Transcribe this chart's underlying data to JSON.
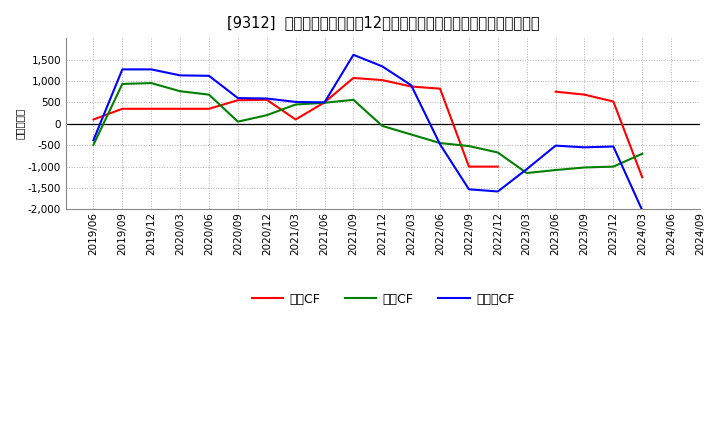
{
  "title": "[9312]  キャッシュフローの12か月移動合計の対前年同期増減額の推移",
  "ylabel": "（百万円）",
  "background_color": "#ffffff",
  "plot_bg_color": "#ffffff",
  "grid_color": "#aaaaaa",
  "x_labels": [
    "2019/06",
    "2019/09",
    "2019/12",
    "2020/03",
    "2020/06",
    "2020/09",
    "2020/12",
    "2021/03",
    "2021/06",
    "2021/09",
    "2021/12",
    "2022/03",
    "2022/06",
    "2022/09",
    "2022/12",
    "2023/03",
    "2023/06",
    "2023/09",
    "2023/12",
    "2024/03",
    "2024/06",
    "2024/09"
  ],
  "operating_cf": [
    100,
    350,
    350,
    350,
    350,
    550,
    560,
    100,
    500,
    1070,
    1020,
    870,
    820,
    -1000,
    -1000,
    null,
    750,
    680,
    520,
    -1250,
    null,
    null
  ],
  "investing_cf": [
    -490,
    930,
    950,
    760,
    680,
    50,
    200,
    450,
    490,
    560,
    -50,
    -250,
    -450,
    -520,
    -670,
    -1150,
    -1080,
    -1020,
    -1000,
    -700,
    null,
    null
  ],
  "free_cf": [
    -380,
    1270,
    1270,
    1130,
    1120,
    600,
    590,
    510,
    500,
    1610,
    1340,
    900,
    -480,
    -1530,
    -1580,
    -1060,
    -510,
    -550,
    -530,
    -2020,
    null,
    null
  ],
  "operating_color": "#ff0000",
  "investing_color": "#008000",
  "free_color": "#0000ff",
  "ylim": [
    -2000,
    2000
  ],
  "yticks": [
    -2000,
    -1500,
    -1000,
    -500,
    0,
    500,
    1000,
    1500
  ],
  "title_fontsize": 10.5,
  "axis_fontsize": 7.5,
  "legend_fontsize": 9
}
